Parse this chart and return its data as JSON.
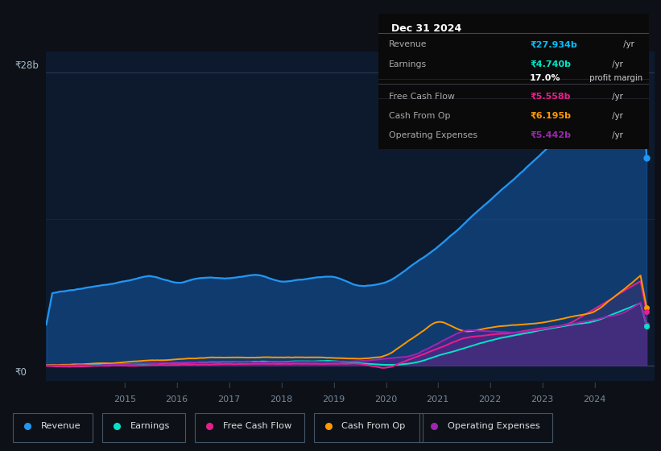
{
  "background_color": "#0d1117",
  "plot_bg_color": "#0d1a2d",
  "ylabel_top": "₹28b",
  "ylabel_bottom": "₹0",
  "series_colors": {
    "Revenue": "#2196f3",
    "Earnings": "#00e5c8",
    "Free Cash Flow": "#e91e8c",
    "Cash From Op": "#ff9800",
    "Operating Expenses": "#9c27b0"
  },
  "legend_items": [
    {
      "label": "Revenue",
      "color": "#2196f3"
    },
    {
      "label": "Earnings",
      "color": "#00e5c8"
    },
    {
      "label": "Free Cash Flow",
      "color": "#e91e8c"
    },
    {
      "label": "Cash From Op",
      "color": "#ff9800"
    },
    {
      "label": "Operating Expenses",
      "color": "#9c27b0"
    }
  ],
  "x_ticks": [
    "2015",
    "2016",
    "2017",
    "2018",
    "2019",
    "2020",
    "2021",
    "2022",
    "2023",
    "2024"
  ],
  "tooltip_title": "Dec 31 2024",
  "tooltip_rows": [
    {
      "label": "Revenue",
      "value": "₹27.934b",
      "suffix": " /yr",
      "color": "#00bfff"
    },
    {
      "label": "Earnings",
      "value": "₹4.740b",
      "suffix": " /yr",
      "color": "#00e5c8"
    },
    {
      "label": "",
      "value": "17.0%",
      "suffix": " profit margin",
      "color": "white"
    },
    {
      "label": "Free Cash Flow",
      "value": "₹5.558b",
      "suffix": " /yr",
      "color": "#e91e8c"
    },
    {
      "label": "Cash From Op",
      "value": "₹6.195b",
      "suffix": " /yr",
      "color": "#ff9800"
    },
    {
      "label": "Operating Expenses",
      "value": "₹5.442b",
      "suffix": " /yr",
      "color": "#9c27b0"
    }
  ]
}
